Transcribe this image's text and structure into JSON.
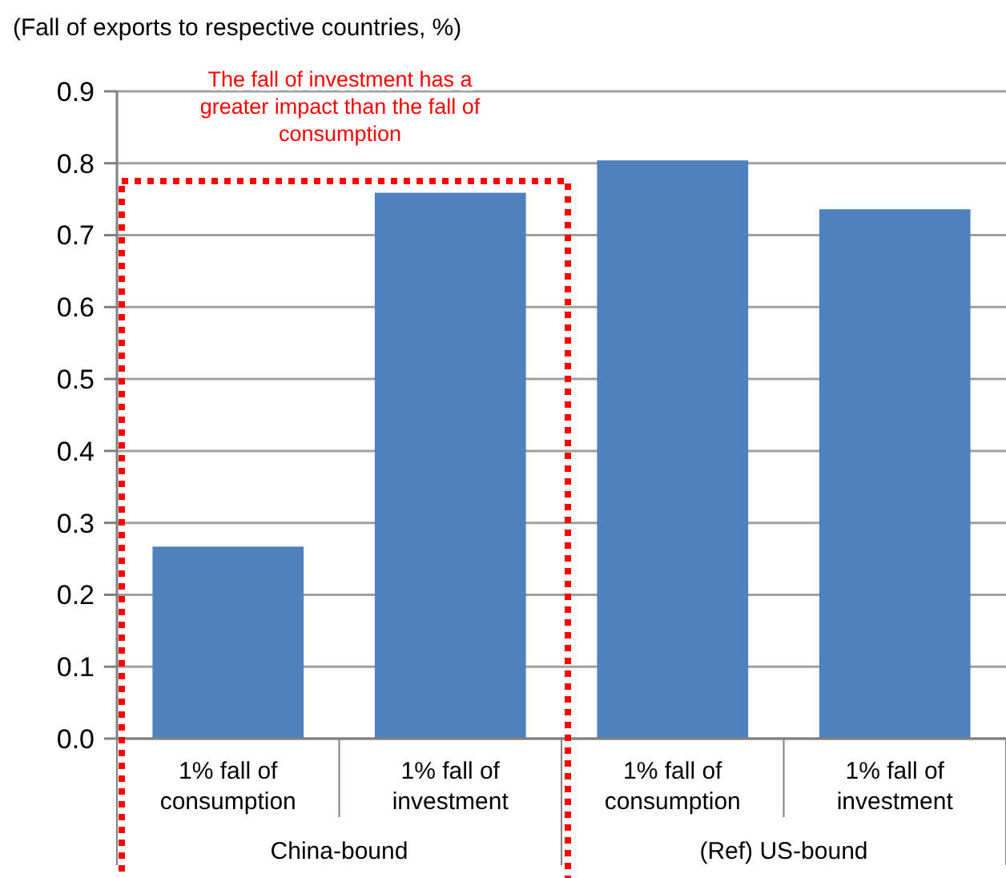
{
  "chart_data": {
    "type": "bar",
    "ylabel": "(Fall of exports to respective countries, %)",
    "categories": [
      "1% fall of consumption",
      "1% fall of investment",
      "1% fall of consumption",
      "1% fall of investment"
    ],
    "values": [
      0.267,
      0.759,
      0.804,
      0.736
    ],
    "color": "#4f81bd",
    "ylim": [
      0,
      0.9
    ],
    "yticks": [
      {
        "value": 0,
        "label": "0.0"
      },
      0.1,
      0.2,
      0.3,
      0.4,
      0.5,
      0.6,
      0.7,
      0.8,
      0.9
    ],
    "grid": "y",
    "annotations": [
      "The fall of investment has a greater impact than the fall of consumption",
      "China-bound",
      "(Ref) US-bound"
    ]
  }
}
